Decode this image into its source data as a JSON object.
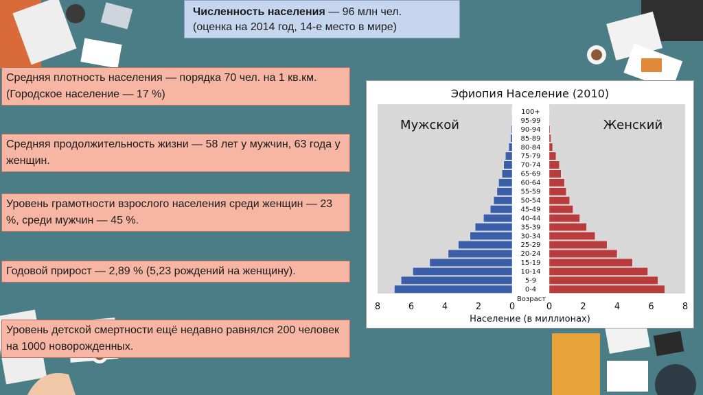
{
  "title": {
    "bold": "Численность населения",
    "rest": " — 96 млн чел.",
    "line2": "(оценка на 2014 год, 14-е место в мире)"
  },
  "facts": [
    "Средняя плотность населения — порядка 70 чел. на 1 кв.км. (Городское население — 17 %)",
    "Средняя продолжительность жизни — 58 лет у мужчин, 63 года у женщин.",
    "Уровень грамотности взрослого населения среди женщин — 23 %, среди мужчин — 45 %.",
    "Годовой прирост — 2,89 % (5,23 рождений на женщину).",
    "Уровень детской смертности ещё недавно равнялся 200 человек на 1000 новорожденных."
  ],
  "chart_data": {
    "type": "bar",
    "title": "Эфиопия Население (2010)",
    "left_label": "Мужской",
    "right_label": "Женский",
    "axis_center_label": "Возраст",
    "xlabel": "Население (в миллионах)",
    "xlim": [
      0,
      8
    ],
    "x_ticks": [
      "8",
      "6",
      "4",
      "2",
      "0",
      "0",
      "2",
      "4",
      "6",
      "8"
    ],
    "categories": [
      "0-4",
      "5-9",
      "10-14",
      "15-19",
      "20-24",
      "25-29",
      "30-34",
      "35-39",
      "40-44",
      "45-49",
      "50-54",
      "55-59",
      "60-64",
      "65-69",
      "70-74",
      "75-79",
      "80-84",
      "85-89",
      "90-94",
      "95-99",
      "100+"
    ],
    "series": [
      {
        "name": "Мужской",
        "values": [
          7.0,
          6.6,
          5.9,
          4.9,
          3.8,
          3.2,
          2.5,
          2.2,
          1.7,
          1.3,
          1.1,
          0.9,
          0.8,
          0.6,
          0.5,
          0.4,
          0.2,
          0.1,
          0.05,
          0.02,
          0.01
        ]
      },
      {
        "name": "Женский",
        "values": [
          6.8,
          6.4,
          5.8,
          4.9,
          4.0,
          3.4,
          2.7,
          2.2,
          1.8,
          1.4,
          1.2,
          1.0,
          0.9,
          0.7,
          0.6,
          0.4,
          0.2,
          0.1,
          0.05,
          0.02,
          0.01
        ]
      }
    ],
    "colors": {
      "male": "#3b5ea8",
      "female": "#b83c3c",
      "panel": "#d8d8d8"
    }
  }
}
